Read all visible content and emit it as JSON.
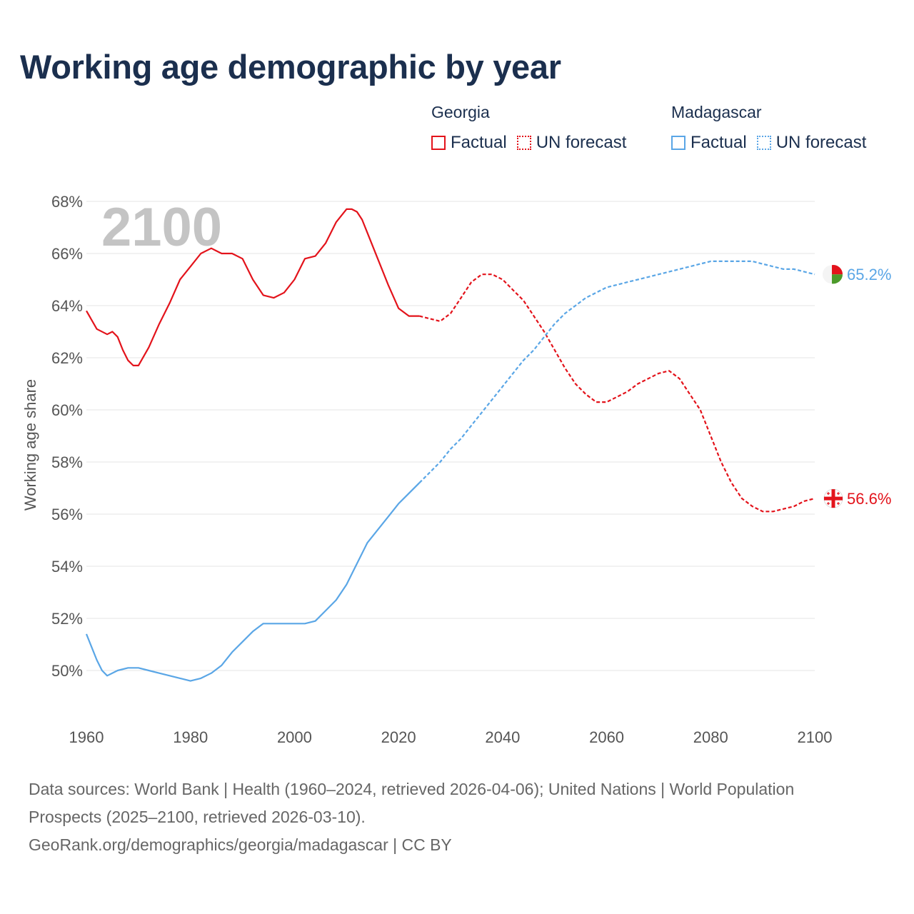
{
  "title": "Working age demographic by year",
  "legend": [
    {
      "name": "Georgia",
      "items": [
        {
          "label": "Factual",
          "style": "solid",
          "color": "#e3131b"
        },
        {
          "label": "UN forecast",
          "style": "dotted",
          "color": "#e3131b"
        }
      ]
    },
    {
      "name": "Madagascar",
      "items": [
        {
          "label": "Factual",
          "style": "solid",
          "color": "#5aa6e6"
        },
        {
          "label": "UN forecast",
          "style": "dotted",
          "color": "#5aa6e6"
        }
      ]
    }
  ],
  "footer": {
    "sources": "Data sources: World Bank | Health (1960–2024, retrieved 2026-04-06); United Nations | World Population Prospects (2025–2100, retrieved 2026-03-10).",
    "url": "GeoRank.org/demographics/georgia/madagascar | CC BY"
  },
  "chart_data": {
    "type": "line",
    "ylabel": "Working age share",
    "xlabel": "",
    "xlim": [
      1960,
      2100
    ],
    "ylim": [
      48.2,
      69
    ],
    "x_ticks": [
      1960,
      1980,
      2000,
      2020,
      2040,
      2060,
      2080,
      2100
    ],
    "y_ticks": [
      50,
      52,
      54,
      56,
      58,
      60,
      62,
      64,
      66,
      68
    ],
    "y_tick_labels": [
      "50%",
      "52%",
      "54%",
      "56%",
      "58%",
      "60%",
      "62%",
      "64%",
      "66%",
      "68%"
    ],
    "grid": "horizontal",
    "year_watermark": "2100",
    "factual_end_year": 2024,
    "series": [
      {
        "name": "Georgia",
        "color": "#e3131b",
        "end_label": "56.6%",
        "points": [
          [
            1960,
            63.8
          ],
          [
            1962,
            63.1
          ],
          [
            1964,
            62.9
          ],
          [
            1965,
            63.0
          ],
          [
            1966,
            62.8
          ],
          [
            1967,
            62.3
          ],
          [
            1968,
            61.9
          ],
          [
            1969,
            61.7
          ],
          [
            1970,
            61.7
          ],
          [
            1972,
            62.4
          ],
          [
            1974,
            63.3
          ],
          [
            1976,
            64.1
          ],
          [
            1978,
            65.0
          ],
          [
            1980,
            65.5
          ],
          [
            1982,
            66.0
          ],
          [
            1984,
            66.2
          ],
          [
            1985,
            66.1
          ],
          [
            1986,
            66.0
          ],
          [
            1988,
            66.0
          ],
          [
            1990,
            65.8
          ],
          [
            1992,
            65.0
          ],
          [
            1994,
            64.4
          ],
          [
            1996,
            64.3
          ],
          [
            1998,
            64.5
          ],
          [
            2000,
            65.0
          ],
          [
            2002,
            65.8
          ],
          [
            2004,
            65.9
          ],
          [
            2006,
            66.4
          ],
          [
            2008,
            67.2
          ],
          [
            2010,
            67.7
          ],
          [
            2011,
            67.7
          ],
          [
            2012,
            67.6
          ],
          [
            2013,
            67.3
          ],
          [
            2014,
            66.8
          ],
          [
            2016,
            65.8
          ],
          [
            2018,
            64.8
          ],
          [
            2020,
            63.9
          ],
          [
            2022,
            63.6
          ],
          [
            2024,
            63.6
          ],
          [
            2026,
            63.5
          ],
          [
            2028,
            63.4
          ],
          [
            2030,
            63.7
          ],
          [
            2032,
            64.3
          ],
          [
            2034,
            64.9
          ],
          [
            2036,
            65.2
          ],
          [
            2038,
            65.2
          ],
          [
            2040,
            65.0
          ],
          [
            2042,
            64.6
          ],
          [
            2044,
            64.2
          ],
          [
            2046,
            63.6
          ],
          [
            2048,
            63.0
          ],
          [
            2050,
            62.3
          ],
          [
            2052,
            61.6
          ],
          [
            2054,
            61.0
          ],
          [
            2056,
            60.6
          ],
          [
            2058,
            60.3
          ],
          [
            2060,
            60.3
          ],
          [
            2062,
            60.5
          ],
          [
            2064,
            60.7
          ],
          [
            2066,
            61.0
          ],
          [
            2068,
            61.2
          ],
          [
            2070,
            61.4
          ],
          [
            2072,
            61.5
          ],
          [
            2074,
            61.2
          ],
          [
            2076,
            60.6
          ],
          [
            2078,
            60.0
          ],
          [
            2080,
            59.0
          ],
          [
            2082,
            58.0
          ],
          [
            2084,
            57.2
          ],
          [
            2086,
            56.6
          ],
          [
            2088,
            56.3
          ],
          [
            2090,
            56.1
          ],
          [
            2092,
            56.1
          ],
          [
            2094,
            56.2
          ],
          [
            2096,
            56.3
          ],
          [
            2098,
            56.5
          ],
          [
            2100,
            56.6
          ]
        ]
      },
      {
        "name": "Madagascar",
        "color": "#5aa6e6",
        "end_label": "65.2%",
        "points": [
          [
            1960,
            51.4
          ],
          [
            1961,
            50.9
          ],
          [
            1962,
            50.4
          ],
          [
            1963,
            50.0
          ],
          [
            1964,
            49.8
          ],
          [
            1966,
            50.0
          ],
          [
            1968,
            50.1
          ],
          [
            1970,
            50.1
          ],
          [
            1972,
            50.0
          ],
          [
            1974,
            49.9
          ],
          [
            1976,
            49.8
          ],
          [
            1978,
            49.7
          ],
          [
            1980,
            49.6
          ],
          [
            1982,
            49.7
          ],
          [
            1984,
            49.9
          ],
          [
            1986,
            50.2
          ],
          [
            1988,
            50.7
          ],
          [
            1990,
            51.1
          ],
          [
            1992,
            51.5
          ],
          [
            1994,
            51.8
          ],
          [
            1996,
            51.8
          ],
          [
            1998,
            51.8
          ],
          [
            2000,
            51.8
          ],
          [
            2002,
            51.8
          ],
          [
            2004,
            51.9
          ],
          [
            2006,
            52.3
          ],
          [
            2008,
            52.7
          ],
          [
            2010,
            53.3
          ],
          [
            2012,
            54.1
          ],
          [
            2014,
            54.9
          ],
          [
            2016,
            55.4
          ],
          [
            2018,
            55.9
          ],
          [
            2020,
            56.4
          ],
          [
            2022,
            56.8
          ],
          [
            2024,
            57.2
          ],
          [
            2026,
            57.6
          ],
          [
            2028,
            58.0
          ],
          [
            2030,
            58.5
          ],
          [
            2032,
            58.9
          ],
          [
            2034,
            59.4
          ],
          [
            2036,
            59.9
          ],
          [
            2038,
            60.4
          ],
          [
            2040,
            60.9
          ],
          [
            2042,
            61.4
          ],
          [
            2044,
            61.9
          ],
          [
            2046,
            62.3
          ],
          [
            2048,
            62.8
          ],
          [
            2050,
            63.3
          ],
          [
            2052,
            63.7
          ],
          [
            2054,
            64.0
          ],
          [
            2056,
            64.3
          ],
          [
            2058,
            64.5
          ],
          [
            2060,
            64.7
          ],
          [
            2062,
            64.8
          ],
          [
            2064,
            64.9
          ],
          [
            2066,
            65.0
          ],
          [
            2068,
            65.1
          ],
          [
            2070,
            65.2
          ],
          [
            2072,
            65.3
          ],
          [
            2074,
            65.4
          ],
          [
            2076,
            65.5
          ],
          [
            2078,
            65.6
          ],
          [
            2080,
            65.7
          ],
          [
            2082,
            65.7
          ],
          [
            2084,
            65.7
          ],
          [
            2086,
            65.7
          ],
          [
            2088,
            65.7
          ],
          [
            2090,
            65.6
          ],
          [
            2092,
            65.5
          ],
          [
            2094,
            65.4
          ],
          [
            2096,
            65.4
          ],
          [
            2098,
            65.3
          ],
          [
            2100,
            65.2
          ]
        ]
      }
    ]
  }
}
